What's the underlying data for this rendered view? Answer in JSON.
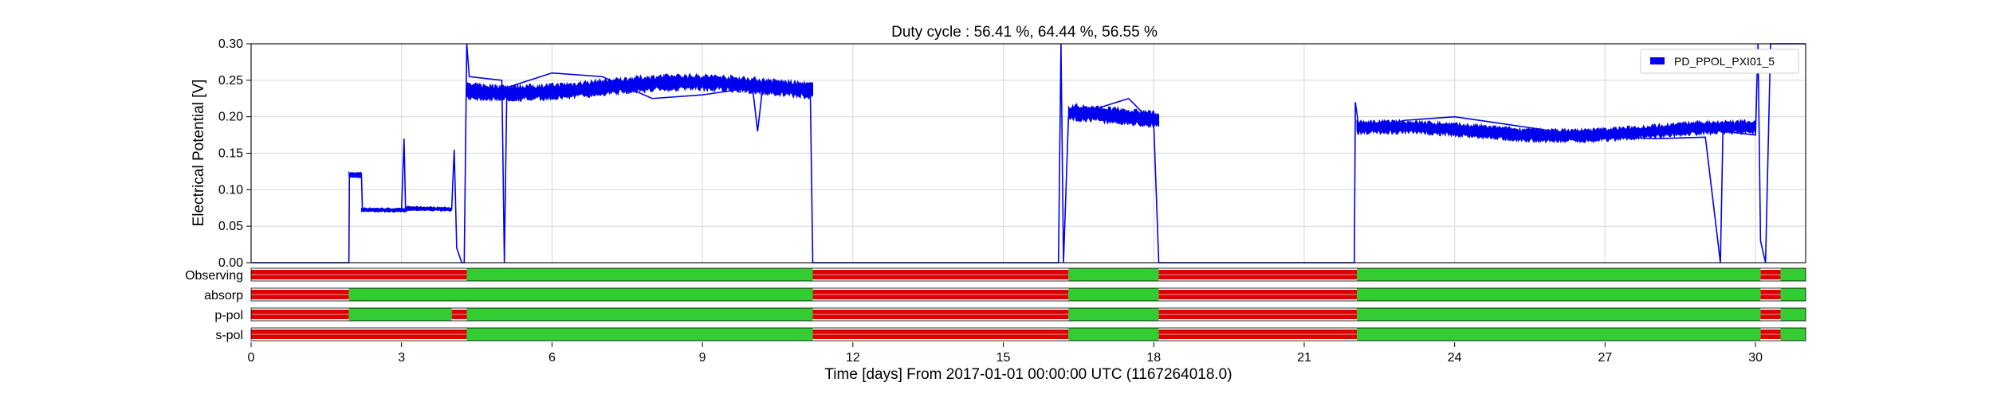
{
  "chart_data": {
    "type": "line",
    "title": "Duty cycle : 56.41 %, 64.44 %, 56.55 %",
    "xlabel": "Time [days] From 2017-01-01 00:00:00 UTC (1167264018.0)",
    "ylabel": "Electrical Potential [V]",
    "xlim": [
      0,
      31
    ],
    "ylim": [
      0,
      0.3
    ],
    "x_ticks": [
      0,
      3,
      6,
      9,
      12,
      15,
      18,
      21,
      24,
      27,
      30
    ],
    "x_tick_labels": [
      "0",
      "3",
      "6",
      "9",
      "12",
      "15",
      "18",
      "21",
      "24",
      "27",
      "30"
    ],
    "y_ticks": [
      0,
      0.05,
      0.1,
      0.15,
      0.2,
      0.25,
      0.3
    ],
    "y_tick_labels": [
      "0.00",
      "0.05",
      "0.10",
      "0.15",
      "0.20",
      "0.25",
      "0.30"
    ],
    "grid": true,
    "legend": {
      "position": "top-right",
      "entries": [
        "PD_PPOL_PXI01_5"
      ]
    },
    "series": [
      {
        "name": "PD_PPOL_PXI01_5",
        "color": "#0000ee",
        "segments": [
          {
            "start": 0.0,
            "end": 1.95,
            "baseline": 0.0,
            "noise": 0.0
          },
          {
            "start": 1.95,
            "end": 2.2,
            "baseline": 0.118,
            "noise": 0.004
          },
          {
            "start": 2.2,
            "end": 3.1,
            "baseline": 0.071,
            "noise": 0.003
          },
          {
            "start": 3.1,
            "end": 4.0,
            "baseline": 0.074,
            "noise": 0.003
          },
          {
            "start": 4.3,
            "end": 11.2,
            "baseline": 0.24,
            "noise": 0.012
          },
          {
            "start": 16.3,
            "end": 18.1,
            "baseline": 0.2,
            "noise": 0.012
          },
          {
            "start": 22.05,
            "end": 30.0,
            "baseline": 0.18,
            "noise": 0.01
          }
        ],
        "points": [
          [
            0,
            0
          ],
          [
            1.95,
            0
          ],
          [
            1.96,
            0.12
          ],
          [
            2.2,
            0.121
          ],
          [
            2.22,
            0.071
          ],
          [
            3.0,
            0.073
          ],
          [
            3.05,
            0.17
          ],
          [
            3.08,
            0.072
          ],
          [
            4.0,
            0.074
          ],
          [
            4.05,
            0.155
          ],
          [
            4.1,
            0.02
          ],
          [
            4.2,
            0.0
          ],
          [
            4.25,
            0.0
          ],
          [
            4.3,
            0.3
          ],
          [
            4.35,
            0.255
          ],
          [
            5.0,
            0.25
          ],
          [
            5.05,
            0.0
          ],
          [
            5.1,
            0.24
          ],
          [
            6.0,
            0.26
          ],
          [
            7.0,
            0.255
          ],
          [
            8.0,
            0.225
          ],
          [
            9.0,
            0.23
          ],
          [
            10.0,
            0.24
          ],
          [
            10.1,
            0.18
          ],
          [
            10.2,
            0.24
          ],
          [
            11.15,
            0.24
          ],
          [
            11.2,
            0.0
          ],
          [
            16.1,
            0.0
          ],
          [
            16.15,
            0.3
          ],
          [
            16.2,
            0.0
          ],
          [
            16.3,
            0.2
          ],
          [
            16.8,
            0.21
          ],
          [
            17.5,
            0.225
          ],
          [
            18.0,
            0.19
          ],
          [
            18.1,
            0.0
          ],
          [
            22.0,
            0.0
          ],
          [
            22.02,
            0.22
          ],
          [
            22.1,
            0.18
          ],
          [
            23.0,
            0.195
          ],
          [
            24.0,
            0.2
          ],
          [
            25.0,
            0.19
          ],
          [
            26.0,
            0.18
          ],
          [
            27.0,
            0.173
          ],
          [
            28.0,
            0.17
          ],
          [
            29.0,
            0.172
          ],
          [
            29.3,
            0.0
          ],
          [
            29.35,
            0.18
          ],
          [
            30.0,
            0.175
          ],
          [
            30.05,
            0.3
          ],
          [
            30.1,
            0.03
          ],
          [
            30.2,
            0.0
          ],
          [
            30.3,
            0.3
          ],
          [
            31,
            0.3
          ]
        ]
      }
    ],
    "state_bars": {
      "labels": [
        "Observing",
        "absorp",
        "p-pol",
        "s-pol"
      ],
      "on_color": "#33cc33",
      "off_color": "#dd0000",
      "rows": [
        {
          "name": "Observing",
          "on": [
            [
              4.3,
              11.2
            ],
            [
              16.3,
              18.1
            ],
            [
              22.05,
              30.1
            ],
            [
              30.5,
              31
            ]
          ],
          "off": [
            [
              0,
              4.3
            ],
            [
              11.2,
              16.3
            ],
            [
              18.1,
              22.05
            ],
            [
              30.1,
              30.5
            ]
          ]
        },
        {
          "name": "absorp",
          "on": [
            [
              1.95,
              11.2
            ],
            [
              16.3,
              18.1
            ],
            [
              22.05,
              30.1
            ],
            [
              30.5,
              31
            ]
          ],
          "off": [
            [
              0,
              1.95
            ],
            [
              11.2,
              16.3
            ],
            [
              18.1,
              22.05
            ],
            [
              30.1,
              30.5
            ]
          ]
        },
        {
          "name": "p-pol",
          "on": [
            [
              1.95,
              4.0
            ],
            [
              4.3,
              11.2
            ],
            [
              16.3,
              18.1
            ],
            [
              22.05,
              30.1
            ],
            [
              30.5,
              31
            ]
          ],
          "off": [
            [
              0,
              1.95
            ],
            [
              4.0,
              4.3
            ],
            [
              11.2,
              16.3
            ],
            [
              18.1,
              22.05
            ],
            [
              30.1,
              30.5
            ]
          ]
        },
        {
          "name": "s-pol",
          "on": [
            [
              4.3,
              11.2
            ],
            [
              16.3,
              18.1
            ],
            [
              22.05,
              30.1
            ],
            [
              30.5,
              31
            ]
          ],
          "off": [
            [
              0,
              4.3
            ],
            [
              11.2,
              16.3
            ],
            [
              18.1,
              22.05
            ],
            [
              30.1,
              30.5
            ]
          ]
        }
      ]
    }
  }
}
